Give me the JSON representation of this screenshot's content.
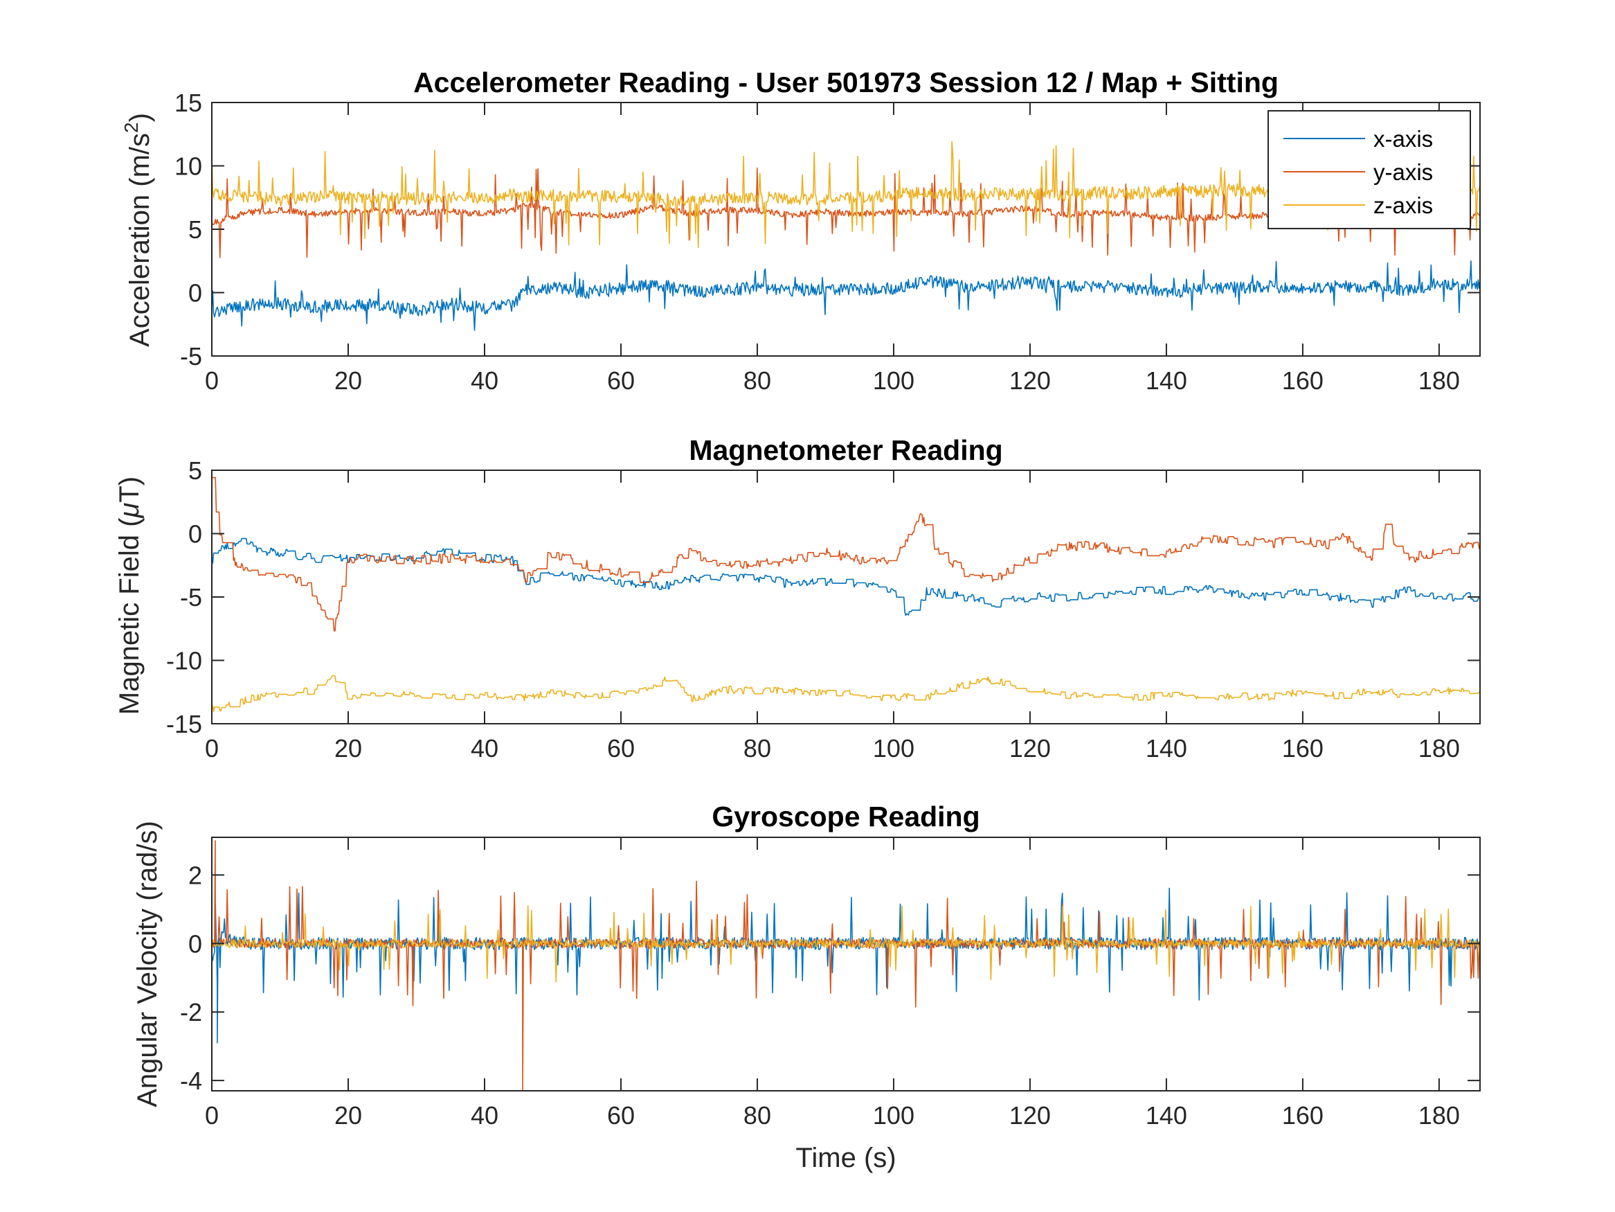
{
  "colors": {
    "x": "#0072BD",
    "y": "#D95319",
    "z": "#EDB120"
  },
  "chart_data": [
    {
      "type": "line",
      "title": "Accelerometer Reading - User 501973 Session 12 / Map + Sitting",
      "xlabel": "",
      "ylabel": "Acceleration (m/s",
      "ylabel_sup": "2",
      "ylabel_end": ")",
      "xlim": [
        0,
        186
      ],
      "ylim": [
        -5,
        15
      ],
      "xticks": [
        "0",
        "20",
        "40",
        "60",
        "80",
        "100",
        "120",
        "140",
        "160",
        "180"
      ],
      "yticks": [
        "-5",
        "0",
        "5",
        "10",
        "15"
      ],
      "legend": {
        "position": "top-right",
        "entries": [
          "x-axis",
          "y-axis",
          "z-axis"
        ]
      },
      "series": [
        {
          "name": "x-axis",
          "color": "#0072BD",
          "x": [
            0,
            5,
            10,
            15,
            20,
            25,
            30,
            35,
            40,
            44,
            46,
            50,
            55,
            60,
            65,
            70,
            75,
            80,
            85,
            90,
            95,
            100,
            105,
            110,
            115,
            120,
            125,
            130,
            135,
            140,
            145,
            150,
            155,
            160,
            165,
            170,
            175,
            180,
            185
          ],
          "values": [
            -1.5,
            -1.0,
            -0.9,
            -1.1,
            -1.0,
            -1.0,
            -1.4,
            -0.9,
            -1.2,
            -1.0,
            0.2,
            0.4,
            0.0,
            0.3,
            0.7,
            0.1,
            0.2,
            0.4,
            0.2,
            0.3,
            0.3,
            0.3,
            0.9,
            0.5,
            0.6,
            0.8,
            0.5,
            0.5,
            0.3,
            0.0,
            0.3,
            0.4,
            0.5,
            0.3,
            0.5,
            0.5,
            0.2,
            0.7,
            0.6
          ],
          "noise": 0.5,
          "spikes": 0.9
        },
        {
          "name": "y-axis",
          "color": "#D95319",
          "x": [
            0,
            5,
            10,
            15,
            20,
            25,
            30,
            35,
            40,
            44,
            46,
            50,
            55,
            60,
            65,
            70,
            75,
            80,
            85,
            90,
            95,
            100,
            105,
            110,
            115,
            120,
            125,
            130,
            135,
            140,
            145,
            150,
            155,
            160,
            165,
            170,
            175,
            180,
            185
          ],
          "values": [
            5.5,
            6.3,
            6.5,
            6.2,
            6.4,
            6.5,
            6.3,
            6.4,
            6.2,
            6.5,
            7.0,
            6.4,
            6.1,
            6.1,
            6.8,
            6.2,
            6.5,
            6.5,
            6.1,
            6.4,
            6.2,
            6.4,
            6.3,
            6.2,
            6.4,
            6.7,
            6.1,
            6.3,
            6.2,
            5.9,
            5.9,
            6.0,
            6.1,
            6.3,
            6.2,
            6.1,
            5.9,
            6.3,
            6.1
          ],
          "noise": 0.25,
          "spikes": 1.5
        },
        {
          "name": "z-axis",
          "color": "#EDB120",
          "x": [
            0,
            5,
            10,
            15,
            20,
            25,
            30,
            35,
            40,
            44,
            46,
            50,
            55,
            60,
            65,
            70,
            75,
            80,
            85,
            90,
            95,
            100,
            105,
            110,
            115,
            120,
            125,
            130,
            135,
            140,
            145,
            150,
            155,
            160,
            165,
            170,
            175,
            180,
            185
          ],
          "values": [
            7.8,
            7.6,
            7.3,
            7.6,
            7.5,
            7.5,
            7.4,
            7.6,
            7.4,
            7.7,
            7.5,
            7.7,
            7.6,
            7.6,
            7.4,
            7.3,
            7.4,
            7.5,
            7.4,
            7.4,
            7.5,
            7.7,
            7.9,
            7.7,
            7.8,
            7.8,
            7.7,
            7.9,
            7.8,
            8.0,
            8.0,
            8.1,
            8.0,
            8.0,
            7.8,
            7.9,
            7.9,
            7.9,
            8.0
          ],
          "noise": 0.5,
          "spikes": 1.8
        }
      ]
    },
    {
      "type": "line",
      "title": "Magnetometer Reading",
      "xlabel": "",
      "ylabel": "Magnetic Field (",
      "ylabel_mu": "μ",
      "ylabel_end": "T)",
      "xlim": [
        0,
        186
      ],
      "ylim": [
        -15,
        5
      ],
      "xticks": [
        "0",
        "20",
        "40",
        "60",
        "80",
        "100",
        "120",
        "140",
        "160",
        "180"
      ],
      "yticks": [
        "-15",
        "-10",
        "-5",
        "0",
        "5"
      ],
      "series": [
        {
          "name": "x-axis",
          "color": "#0072BD",
          "x": [
            0,
            2,
            4,
            6,
            8,
            10,
            15,
            20,
            25,
            28,
            32,
            36,
            40,
            44,
            46,
            48,
            50,
            55,
            60,
            63,
            66,
            70,
            75,
            80,
            85,
            90,
            95,
            100,
            102,
            105,
            110,
            115,
            120,
            125,
            130,
            135,
            140,
            145,
            150,
            155,
            160,
            165,
            170,
            175,
            180,
            185
          ],
          "values": [
            -2.0,
            -1.0,
            -0.5,
            -1.0,
            -1.5,
            -1.5,
            -2.0,
            -2.0,
            -1.8,
            -2.0,
            -1.5,
            -1.5,
            -2.0,
            -2.0,
            -4.0,
            -3.5,
            -3.0,
            -3.5,
            -4.0,
            -4.0,
            -4.2,
            -3.5,
            -3.5,
            -3.5,
            -4.0,
            -3.8,
            -4.0,
            -4.5,
            -6.5,
            -4.5,
            -5.0,
            -5.5,
            -5.0,
            -5.0,
            -4.8,
            -4.5,
            -4.5,
            -4.3,
            -4.8,
            -5.0,
            -4.5,
            -5.0,
            -5.5,
            -4.5,
            -5.0,
            -5.0
          ],
          "noise": 0.35,
          "spikes": 0
        },
        {
          "name": "y-axis",
          "color": "#D95319",
          "x": [
            0,
            1,
            3,
            6,
            10,
            14,
            18,
            20,
            25,
            30,
            35,
            40,
            44,
            46,
            48,
            50,
            55,
            60,
            63,
            66,
            70,
            75,
            80,
            85,
            90,
            95,
            100,
            102,
            104,
            106,
            110,
            115,
            120,
            125,
            130,
            135,
            140,
            145,
            150,
            155,
            160,
            163,
            166,
            170,
            172,
            175,
            180,
            185
          ],
          "values": [
            4.5,
            0.0,
            -2.0,
            -3.0,
            -3.0,
            -4.0,
            -7.5,
            -2.0,
            -2.0,
            -2.0,
            -2.0,
            -2.0,
            -2.5,
            -3.5,
            -2.5,
            -1.5,
            -2.5,
            -3.0,
            -3.5,
            -3.0,
            -1.5,
            -2.5,
            -2.5,
            -2.0,
            -1.5,
            -2.0,
            -2.0,
            -0.5,
            1.5,
            -1.0,
            -3.0,
            -3.5,
            -2.0,
            -1.0,
            -1.0,
            -1.5,
            -1.5,
            -0.5,
            -0.5,
            -0.8,
            -0.5,
            -1.0,
            -0.2,
            -2.0,
            0.5,
            -2.0,
            -1.5,
            -1.0
          ],
          "noise": 0.4,
          "spikes": 0
        },
        {
          "name": "z-axis",
          "color": "#EDB120",
          "x": [
            0,
            3,
            6,
            10,
            15,
            18,
            20,
            25,
            30,
            35,
            40,
            45,
            50,
            55,
            60,
            65,
            67,
            70,
            75,
            80,
            85,
            90,
            95,
            100,
            105,
            110,
            113,
            116,
            120,
            125,
            130,
            135,
            140,
            145,
            150,
            155,
            160,
            165,
            170,
            175,
            180,
            185
          ],
          "values": [
            -13.8,
            -13.5,
            -13.0,
            -12.7,
            -12.3,
            -11.3,
            -13.0,
            -12.6,
            -12.7,
            -12.9,
            -12.8,
            -13.0,
            -12.6,
            -12.8,
            -12.6,
            -12.0,
            -11.2,
            -13.0,
            -12.3,
            -12.4,
            -12.4,
            -12.5,
            -12.7,
            -13.0,
            -12.8,
            -12.0,
            -11.5,
            -11.8,
            -12.3,
            -12.7,
            -12.8,
            -12.9,
            -12.8,
            -12.9,
            -12.8,
            -12.9,
            -12.5,
            -12.8,
            -12.4,
            -12.7,
            -12.3,
            -12.6
          ],
          "noise": 0.3,
          "spikes": 0
        }
      ]
    },
    {
      "type": "line",
      "title": "Gyroscope Reading",
      "xlabel": "Time (s)",
      "ylabel": "Angular Velocity (rad/s)",
      "xlim": [
        0,
        186
      ],
      "ylim": [
        -4.3,
        3.1
      ],
      "xticks": [
        "0",
        "20",
        "40",
        "60",
        "80",
        "100",
        "120",
        "140",
        "160",
        "180"
      ],
      "yticks": [
        "-4",
        "-2",
        "0",
        "2"
      ],
      "series": [
        {
          "name": "x-axis",
          "color": "#0072BD",
          "x": [
            0,
            1,
            5,
            20,
            45,
            60,
            90,
            100,
            120,
            140,
            160,
            185
          ],
          "values": [
            -0.5,
            0.2,
            0.0,
            0.0,
            0.0,
            0.0,
            0.0,
            0.0,
            0.0,
            0.0,
            0.0,
            0.0
          ],
          "noise": 0.18,
          "spikes": 0.7
        },
        {
          "name": "y-axis",
          "color": "#D95319",
          "x": [
            0,
            1,
            5,
            20,
            45,
            60,
            90,
            100,
            120,
            140,
            160,
            185
          ],
          "values": [
            0.0,
            0.0,
            0.0,
            0.0,
            0.0,
            0.0,
            0.0,
            0.0,
            0.0,
            0.0,
            0.0,
            0.0
          ],
          "noise": 0.14,
          "spikes": 0.8
        },
        {
          "name": "z-axis",
          "color": "#EDB120",
          "x": [
            0,
            1,
            5,
            20,
            45,
            60,
            90,
            100,
            120,
            140,
            160,
            185
          ],
          "values": [
            0.0,
            0.0,
            0.0,
            0.0,
            0.0,
            0.0,
            0.0,
            0.0,
            0.0,
            0.0,
            0.0,
            0.0
          ],
          "noise": 0.12,
          "spikes": 0.5
        }
      ]
    }
  ]
}
